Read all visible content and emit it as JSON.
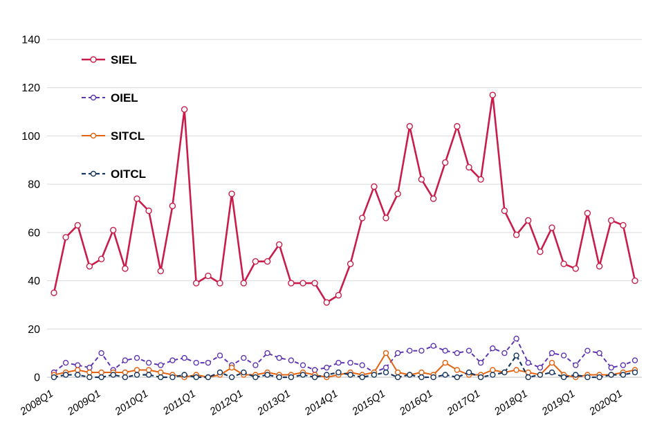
{
  "chart_data": {
    "type": "line",
    "title": "",
    "xlabel": "",
    "ylabel": "",
    "ylim": [
      0,
      140
    ],
    "ytick_step": 20,
    "xtick_every": 4,
    "grid": true,
    "legend_position": "top-left-inside",
    "grid_color": "#d9d9d9",
    "axis_color": "#bfbfbf",
    "text_color": "#000000",
    "categories": [
      "2008Q1",
      "2008Q2",
      "2008Q3",
      "2008Q4",
      "2009Q1",
      "2009Q2",
      "2009Q3",
      "2009Q4",
      "2010Q1",
      "2010Q2",
      "2010Q3",
      "2010Q4",
      "2011Q1",
      "2011Q2",
      "2011Q3",
      "2011Q4",
      "2012Q1",
      "2012Q2",
      "2012Q3",
      "2012Q4",
      "2013Q1",
      "2013Q2",
      "2013Q3",
      "2013Q4",
      "2014Q1",
      "2014Q2",
      "2014Q3",
      "2014Q4",
      "2015Q1",
      "2015Q2",
      "2015Q3",
      "2015Q4",
      "2016Q1",
      "2016Q2",
      "2016Q3",
      "2016Q4",
      "2017Q1",
      "2017Q2",
      "2017Q3",
      "2017Q4",
      "2018Q1",
      "2018Q2",
      "2018Q3",
      "2018Q4",
      "2019Q1",
      "2019Q2",
      "2019Q3",
      "2019Q4",
      "2020Q1",
      "2020Q2"
    ],
    "xtick_labels": [
      "2008Q1",
      "2009Q1",
      "2010Q1",
      "2011Q1",
      "2012Q1",
      "2013Q1",
      "2014Q1",
      "2015Q1",
      "2016Q1",
      "2017Q1",
      "2018Q1",
      "2019Q1",
      "2020Q1"
    ],
    "ytick_labels": [
      "0",
      "20",
      "40",
      "60",
      "80",
      "100",
      "120",
      "140"
    ],
    "series": [
      {
        "name": "SIEL",
        "color": "#c81d4a",
        "dashed": false,
        "line_width": 2.6,
        "marker": "open-circle",
        "marker_radius": 4,
        "values": [
          35,
          58,
          63,
          46,
          49,
          61,
          45,
          74,
          69,
          44,
          71,
          111,
          39,
          42,
          39,
          76,
          39,
          48,
          48,
          55,
          39,
          39,
          39,
          31,
          34,
          47,
          66,
          79,
          66,
          76,
          104,
          82,
          74,
          89,
          104,
          87,
          82,
          117,
          69,
          59,
          65,
          52,
          62,
          47,
          45,
          68,
          46,
          65,
          63,
          40
        ]
      },
      {
        "name": "OIEL",
        "color": "#5e35b1",
        "dashed": true,
        "line_width": 2,
        "marker": "open-circle",
        "marker_radius": 3.5,
        "values": [
          2,
          6,
          5,
          4,
          10,
          3,
          7,
          8,
          6,
          5,
          7,
          8,
          6,
          6,
          9,
          5,
          8,
          5,
          10,
          8,
          7,
          5,
          3,
          4,
          6,
          6,
          5,
          2,
          4,
          10,
          11,
          11,
          13,
          11,
          10,
          11,
          6,
          12,
          10,
          16,
          6,
          4,
          10,
          9,
          5,
          11,
          10,
          4,
          5,
          7
        ]
      },
      {
        "name": "SITCL",
        "color": "#e2620f",
        "dashed": false,
        "line_width": 2,
        "marker": "open-circle",
        "marker_radius": 3.5,
        "values": [
          1,
          2,
          3,
          2,
          2,
          2,
          2,
          3,
          3,
          2,
          1,
          0,
          1,
          0,
          1,
          4,
          1,
          1,
          2,
          1,
          1,
          2,
          1,
          0,
          1,
          2,
          1,
          2,
          10,
          2,
          1,
          2,
          1,
          6,
          3,
          1,
          1,
          3,
          2,
          3,
          2,
          1,
          6,
          1,
          0,
          1,
          1,
          1,
          2,
          3
        ]
      },
      {
        "name": "OITCL",
        "color": "#17365d",
        "dashed": true,
        "line_width": 2.2,
        "marker": "open-circle",
        "marker_radius": 3.5,
        "values": [
          0,
          1,
          1,
          0,
          0,
          1,
          0,
          1,
          1,
          0,
          0,
          1,
          0,
          0,
          2,
          0,
          2,
          0,
          1,
          0,
          0,
          1,
          0,
          1,
          2,
          1,
          0,
          1,
          2,
          0,
          1,
          0,
          0,
          1,
          0,
          2,
          0,
          1,
          2,
          9,
          0,
          1,
          2,
          0,
          1,
          0,
          0,
          1,
          1,
          2
        ]
      }
    ]
  }
}
